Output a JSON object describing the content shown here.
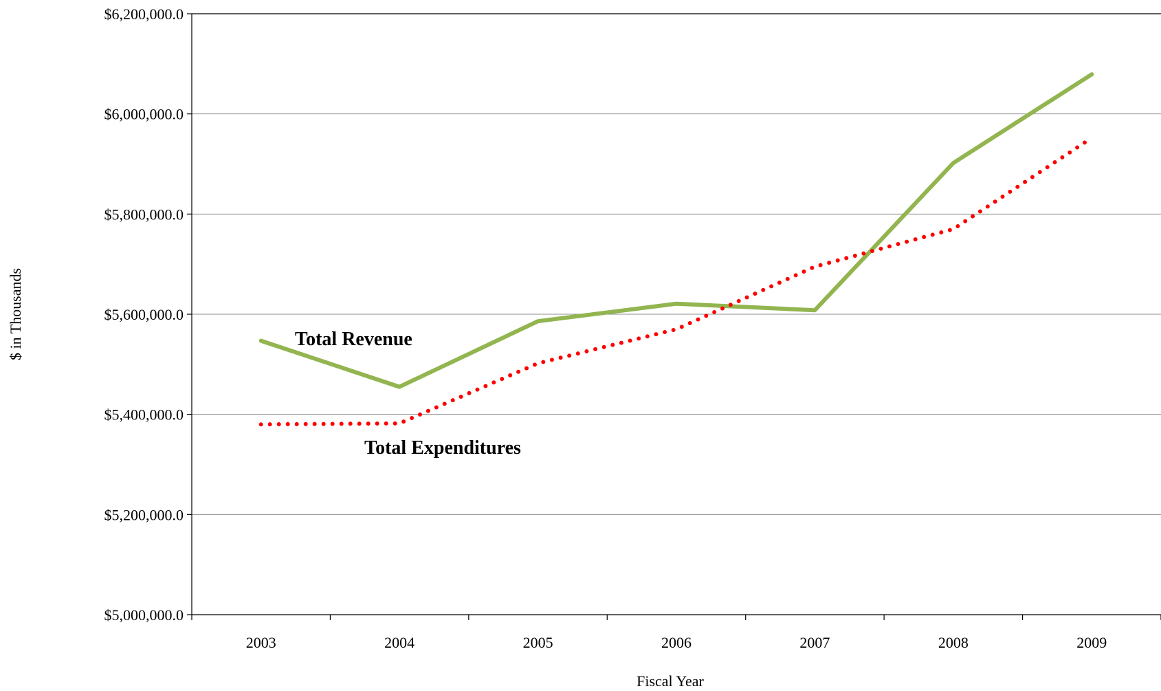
{
  "chart_data": {
    "type": "line",
    "title": "",
    "xlabel": "Fiscal Year",
    "ylabel": "$ in Thousands",
    "categories": [
      "2003",
      "2004",
      "2005",
      "2006",
      "2007",
      "2008",
      "2009"
    ],
    "ylim": [
      5000000,
      6200000
    ],
    "yticks": [
      5000000,
      5200000,
      5400000,
      5600000,
      5800000,
      6000000,
      6200000
    ],
    "ytick_labels": [
      "$5,000,000.0",
      "$5,200,000.0",
      "$5,400,000.0",
      "$5,600,000.0",
      "$5,800,000.0",
      "$6,000,000.0",
      "$6,200,000.0"
    ],
    "grid": true,
    "series": [
      {
        "name": "Total Revenue",
        "style": "solid",
        "color": "#92b550",
        "values": [
          5547000,
          5455000,
          5586000,
          5621000,
          5608000,
          5902000,
          6079000
        ]
      },
      {
        "name": "Total Expenditures",
        "style": "dotted",
        "color": "#ff0000",
        "values": [
          5380000,
          5382000,
          5502000,
          5570000,
          5695000,
          5770000,
          5952000
        ]
      }
    ]
  }
}
